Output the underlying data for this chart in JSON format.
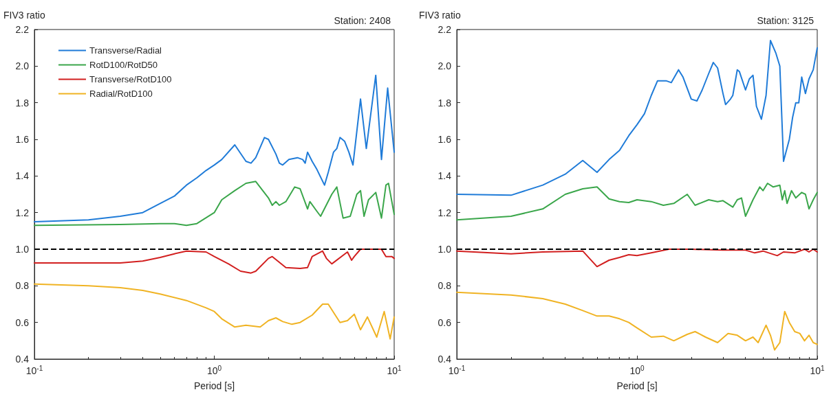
{
  "chart_data": [
    {
      "type": "line",
      "title": "Station: 2408",
      "ylabel": "FIV3 ratio",
      "xlabel": "Period [s]",
      "log": "x",
      "grid": false,
      "legend": "top left",
      "marker": "none",
      "line_style": "solid",
      "xlim": [
        0.1,
        10
      ],
      "xticks": [
        {
          "value": 0.1,
          "label": "10$^{-1}$"
        },
        {
          "value": 1,
          "label": "10$^{0}$"
        },
        {
          "value": 10,
          "label": "10$^{1}$"
        }
      ],
      "ylim": [
        0.4,
        2.2
      ],
      "yticks": [
        {
          "value": 0.4,
          "label": "0.4"
        },
        {
          "value": 0.6,
          "label": "0.6"
        },
        {
          "value": 0.8,
          "label": "0.8"
        },
        {
          "value": 1,
          "label": "1.0"
        },
        {
          "value": 1.2,
          "label": "1.2"
        },
        {
          "value": 1.4,
          "label": "1.4"
        },
        {
          "value": 1.6,
          "label": "1.6"
        },
        {
          "value": 1.8,
          "label": "1.8"
        },
        {
          "value": 2,
          "label": "2.0"
        },
        {
          "value": 2.2,
          "label": "2.2"
        }
      ],
      "ref_lines": [
        {
          "axis": "y",
          "value": 1,
          "color": "#000000",
          "line_style": "dashed"
        }
      ],
      "series": [
        {
          "name": "Transverse/Radial",
          "color": "#1f7bd8",
          "x": [
            0.1,
            0.2,
            0.3,
            0.4,
            0.5,
            0.6,
            0.7,
            0.8,
            0.9,
            1.0,
            1.1,
            1.3,
            1.5,
            1.6,
            1.7,
            1.9,
            2.0,
            2.2,
            2.3,
            2.4,
            2.6,
            2.9,
            3.1,
            3.2,
            3.3,
            3.5,
            3.7,
            4.1,
            4.3,
            4.6,
            4.8,
            5.0,
            5.3,
            5.6,
            5.9,
            6.5,
            7.0,
            7.9,
            8.5,
            9.2,
            10
          ],
          "values": [
            1.15,
            1.16,
            1.18,
            1.2,
            1.25,
            1.29,
            1.35,
            1.39,
            1.43,
            1.46,
            1.49,
            1.57,
            1.48,
            1.47,
            1.5,
            1.61,
            1.6,
            1.52,
            1.47,
            1.46,
            1.49,
            1.5,
            1.49,
            1.47,
            1.53,
            1.48,
            1.44,
            1.35,
            1.42,
            1.53,
            1.55,
            1.61,
            1.59,
            1.53,
            1.46,
            1.82,
            1.55,
            1.95,
            1.49,
            1.88,
            1.53
          ]
        },
        {
          "name": "RotD100/RotD50",
          "color": "#3aa64a",
          "x": [
            0.1,
            0.3,
            0.5,
            0.6,
            0.7,
            0.8,
            1.0,
            1.1,
            1.3,
            1.5,
            1.7,
            2.0,
            2.1,
            2.2,
            2.3,
            2.5,
            2.8,
            3.0,
            3.3,
            3.4,
            3.7,
            3.9,
            4.5,
            4.8,
            5.2,
            5.7,
            6.2,
            6.5,
            6.8,
            7.2,
            7.9,
            8.5,
            9.0,
            9.3,
            10
          ],
          "values": [
            1.13,
            1.135,
            1.14,
            1.14,
            1.13,
            1.14,
            1.2,
            1.27,
            1.32,
            1.36,
            1.37,
            1.28,
            1.24,
            1.26,
            1.24,
            1.26,
            1.34,
            1.33,
            1.22,
            1.26,
            1.21,
            1.18,
            1.3,
            1.34,
            1.17,
            1.18,
            1.3,
            1.32,
            1.18,
            1.27,
            1.31,
            1.17,
            1.35,
            1.36,
            1.19
          ]
        },
        {
          "name": "Transverse/RotD100",
          "color": "#d21f1f",
          "x": [
            0.1,
            0.2,
            0.3,
            0.4,
            0.5,
            0.6,
            0.7,
            0.9,
            1.0,
            1.2,
            1.4,
            1.6,
            1.7,
            2.0,
            2.1,
            2.5,
            3.0,
            3.3,
            3.5,
            4.0,
            4.2,
            4.5,
            5.5,
            5.8,
            6.0,
            6.5,
            7.5,
            8.5,
            9.0,
            9.7,
            10
          ],
          "values": [
            0.925,
            0.925,
            0.925,
            0.935,
            0.955,
            0.975,
            0.99,
            0.985,
            0.96,
            0.92,
            0.88,
            0.87,
            0.88,
            0.95,
            0.96,
            0.9,
            0.895,
            0.9,
            0.96,
            0.99,
            0.95,
            0.92,
            0.985,
            0.94,
            0.96,
            1.0,
            1.0,
            1.0,
            0.96,
            0.96,
            0.95
          ]
        },
        {
          "name": "Radial/RotD100",
          "color": "#f0b323",
          "x": [
            0.1,
            0.2,
            0.3,
            0.4,
            0.5,
            0.7,
            0.9,
            1.0,
            1.1,
            1.3,
            1.5,
            1.8,
            2.0,
            2.2,
            2.4,
            2.7,
            3.0,
            3.5,
            4.0,
            4.3,
            5.0,
            5.5,
            6.0,
            6.5,
            7.1,
            8.0,
            8.8,
            9.5,
            10
          ],
          "values": [
            0.81,
            0.8,
            0.79,
            0.775,
            0.755,
            0.72,
            0.68,
            0.66,
            0.62,
            0.575,
            0.585,
            0.575,
            0.61,
            0.625,
            0.605,
            0.59,
            0.6,
            0.64,
            0.7,
            0.7,
            0.6,
            0.61,
            0.645,
            0.56,
            0.63,
            0.52,
            0.66,
            0.51,
            0.63
          ]
        }
      ]
    },
    {
      "type": "line",
      "title": "Station: 3125",
      "ylabel": "FIV3 ratio",
      "xlabel": "Period [s]",
      "log": "x",
      "grid": false,
      "legend": false,
      "marker": "none",
      "line_style": "solid",
      "xlim": [
        0.1,
        10
      ],
      "xticks": [
        {
          "value": 0.1,
          "label": "10$^{-1}$"
        },
        {
          "value": 1,
          "label": "10$^{0}$"
        },
        {
          "value": 10,
          "label": "10$^{1}$"
        }
      ],
      "ylim": [
        0.4,
        2.2
      ],
      "yticks": [
        {
          "value": 0.4,
          "label": "0.4"
        },
        {
          "value": 0.6,
          "label": "0.6"
        },
        {
          "value": 0.8,
          "label": "0.8"
        },
        {
          "value": 1,
          "label": "1.0"
        },
        {
          "value": 1.2,
          "label": "1.2"
        },
        {
          "value": 1.4,
          "label": "1.4"
        },
        {
          "value": 1.6,
          "label": "1.6"
        },
        {
          "value": 1.8,
          "label": "1.8"
        },
        {
          "value": 2,
          "label": "2.0"
        },
        {
          "value": 2.2,
          "label": "2.2"
        }
      ],
      "ref_lines": [
        {
          "axis": "y",
          "value": 1,
          "color": "#000000",
          "line_style": "dashed"
        }
      ],
      "series": [
        {
          "color": "#1f7bd8",
          "x": [
            0.1,
            0.2,
            0.3,
            0.4,
            0.5,
            0.6,
            0.7,
            0.8,
            0.9,
            1.0,
            1.1,
            1.2,
            1.3,
            1.45,
            1.55,
            1.7,
            1.8,
            2.0,
            2.15,
            2.3,
            2.5,
            2.65,
            2.8,
            3.0,
            3.1,
            3.3,
            3.4,
            3.6,
            3.7,
            4.0,
            4.2,
            4.4,
            4.6,
            4.9,
            5.2,
            5.5,
            5.9,
            6.2,
            6.5,
            7.0,
            7.3,
            7.6,
            7.9,
            8.2,
            8.6,
            9.0,
            9.5,
            10
          ],
          "values": [
            1.3,
            1.295,
            1.35,
            1.41,
            1.485,
            1.42,
            1.49,
            1.54,
            1.62,
            1.68,
            1.74,
            1.84,
            1.92,
            1.92,
            1.91,
            1.98,
            1.94,
            1.82,
            1.81,
            1.87,
            1.96,
            2.02,
            1.99,
            1.85,
            1.79,
            1.82,
            1.84,
            1.98,
            1.97,
            1.87,
            1.93,
            1.95,
            1.78,
            1.71,
            1.84,
            2.14,
            2.07,
            2.0,
            1.48,
            1.6,
            1.72,
            1.8,
            1.8,
            1.94,
            1.85,
            1.93,
            1.98,
            2.1
          ]
        },
        {
          "color": "#3aa64a",
          "x": [
            0.1,
            0.2,
            0.3,
            0.4,
            0.5,
            0.6,
            0.7,
            0.8,
            0.9,
            1.0,
            1.2,
            1.4,
            1.6,
            1.9,
            2.1,
            2.5,
            2.8,
            3.0,
            3.4,
            3.6,
            3.8,
            4.0,
            4.4,
            4.8,
            5.0,
            5.3,
            5.7,
            6.2,
            6.4,
            6.6,
            6.8,
            7.2,
            7.6,
            8.2,
            8.6,
            9.0,
            9.5,
            10
          ],
          "values": [
            1.16,
            1.18,
            1.22,
            1.3,
            1.33,
            1.34,
            1.275,
            1.26,
            1.255,
            1.27,
            1.26,
            1.24,
            1.25,
            1.3,
            1.24,
            1.27,
            1.26,
            1.265,
            1.23,
            1.27,
            1.28,
            1.18,
            1.27,
            1.34,
            1.32,
            1.36,
            1.34,
            1.35,
            1.27,
            1.32,
            1.25,
            1.32,
            1.28,
            1.31,
            1.3,
            1.22,
            1.27,
            1.31
          ]
        },
        {
          "color": "#d21f1f",
          "x": [
            0.1,
            0.2,
            0.3,
            0.5,
            0.6,
            0.7,
            0.8,
            0.9,
            1.0,
            1.2,
            1.5,
            2.0,
            3.0,
            4.0,
            4.5,
            5.0,
            6.0,
            6.5,
            7.5,
            8.5,
            9.0,
            9.5,
            10
          ],
          "values": [
            0.99,
            0.975,
            0.985,
            0.99,
            0.905,
            0.94,
            0.955,
            0.97,
            0.965,
            0.98,
            1.0,
            1.0,
            0.995,
            0.995,
            0.98,
            0.99,
            0.965,
            0.985,
            0.98,
            1.0,
            0.985,
            1.0,
            0.985
          ]
        },
        {
          "color": "#f0b323",
          "x": [
            0.1,
            0.2,
            0.3,
            0.4,
            0.5,
            0.6,
            0.7,
            0.8,
            0.9,
            1.0,
            1.2,
            1.4,
            1.6,
            1.9,
            2.1,
            2.4,
            2.8,
            3.2,
            3.6,
            4.0,
            4.4,
            4.7,
            5.2,
            5.5,
            5.8,
            6.2,
            6.6,
            7.0,
            7.5,
            8.0,
            8.5,
            9.0,
            9.5,
            10
          ],
          "values": [
            0.765,
            0.75,
            0.73,
            0.7,
            0.665,
            0.635,
            0.635,
            0.62,
            0.6,
            0.57,
            0.52,
            0.525,
            0.5,
            0.535,
            0.55,
            0.52,
            0.49,
            0.54,
            0.53,
            0.5,
            0.52,
            0.49,
            0.585,
            0.53,
            0.45,
            0.49,
            0.66,
            0.6,
            0.55,
            0.54,
            0.5,
            0.53,
            0.49,
            0.48
          ]
        }
      ]
    }
  ]
}
